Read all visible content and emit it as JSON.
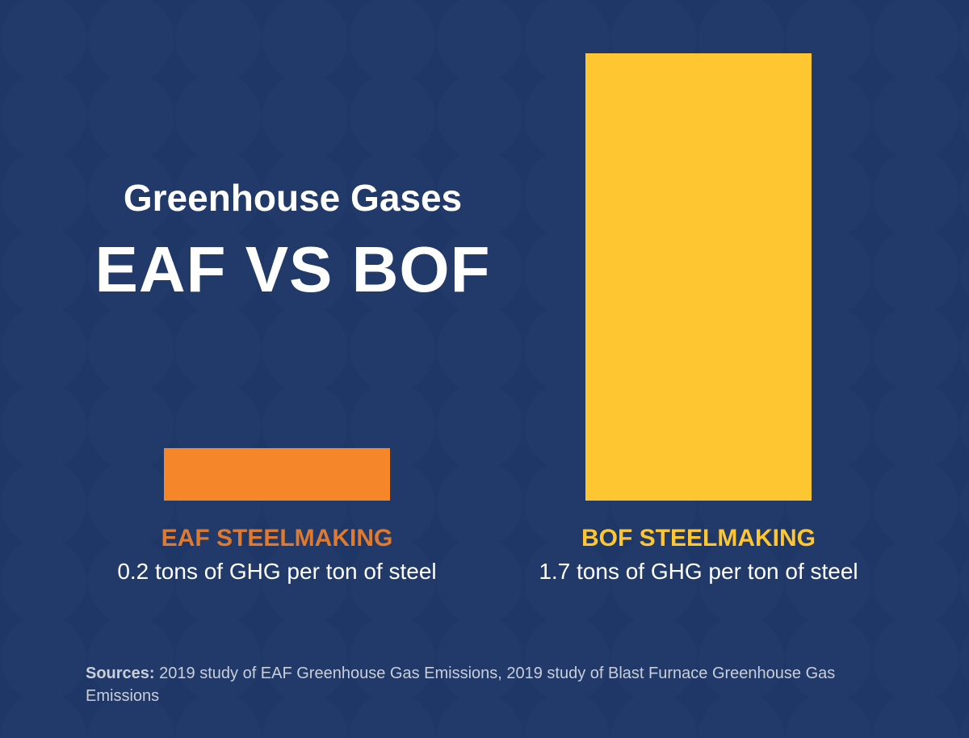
{
  "chart_data": {
    "type": "bar",
    "title": "Greenhouse Gases",
    "subtitle": "EAF VS BOF",
    "categories": [
      "EAF STEELMAKING",
      "BOF STEELMAKING"
    ],
    "values": [
      0.2,
      1.7
    ],
    "value_labels": [
      "0.2 tons of GHG per ton of steel",
      "1.7 tons of GHG per ton of steel"
    ],
    "unit": "tons of GHG per ton of steel",
    "colors": [
      "#f5872a",
      "#fec630"
    ],
    "label_colors": [
      "#e07a2e",
      "#fec630"
    ],
    "ylim": [
      0,
      1.7
    ],
    "grid": false,
    "xlabel": "",
    "ylabel": ""
  },
  "sources": {
    "label": "Sources:",
    "text": "2019 study of EAF Greenhouse Gas Emissions, 2019 study of Blast Furnace Greenhouse Gas Emissions"
  }
}
